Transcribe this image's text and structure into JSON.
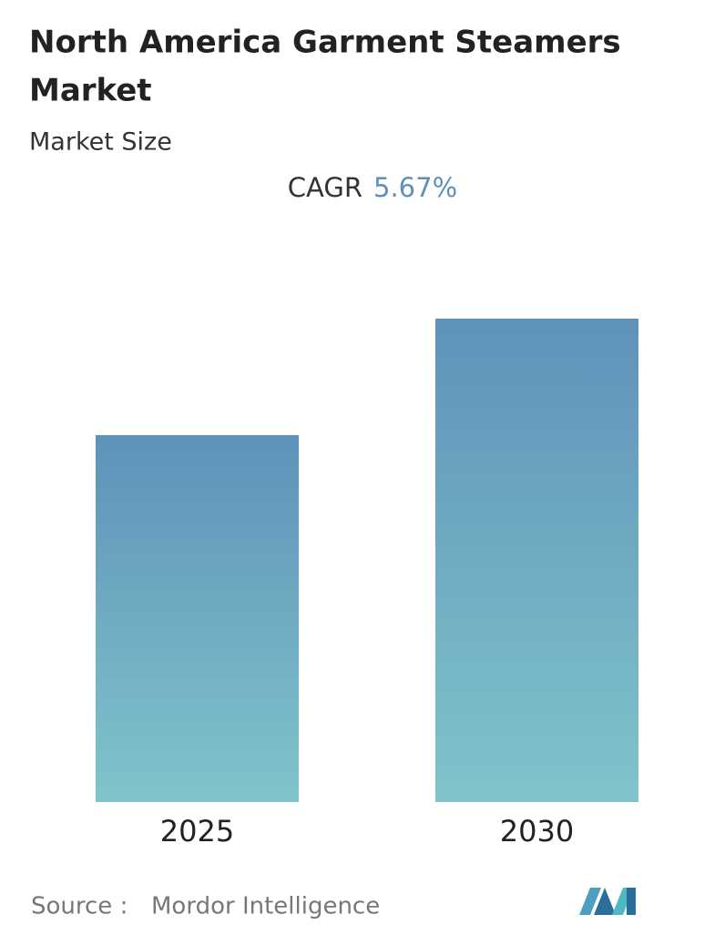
{
  "chart_data": {
    "type": "bar",
    "title_lines": [
      "North America Garment Steamers",
      "Market"
    ],
    "subtitle": "Market Size",
    "cagr_label": "CAGR",
    "cagr_value": "5.67%",
    "categories": [
      "2025",
      "2030"
    ],
    "values": [
      403,
      531
    ],
    "color_top": "#5f92b9",
    "color_bottom": "#80c4cb",
    "source_label": "Source :",
    "source": "Mordor Intelligence"
  }
}
